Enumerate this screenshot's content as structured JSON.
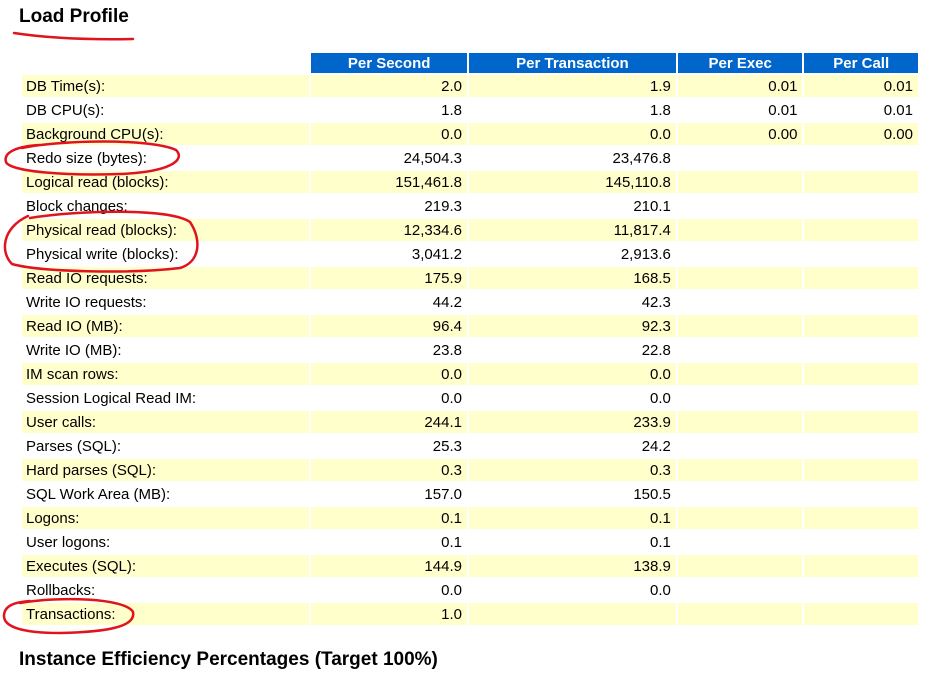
{
  "titles": {
    "load_profile": "Load Profile",
    "efficiency": "Instance Efficiency Percentages (Target 100%)"
  },
  "columns": [
    "",
    "Per Second",
    "Per Transaction",
    "Per Exec",
    "Per Call"
  ],
  "rows": [
    [
      "DB Time(s):",
      "2.0",
      "1.9",
      "0.01",
      "0.01"
    ],
    [
      "DB CPU(s):",
      "1.8",
      "1.8",
      "0.01",
      "0.01"
    ],
    [
      "Background CPU(s):",
      "0.0",
      "0.0",
      "0.00",
      "0.00"
    ],
    [
      "Redo size (bytes):",
      "24,504.3",
      "23,476.8",
      "",
      ""
    ],
    [
      "Logical read (blocks):",
      "151,461.8",
      "145,110.8",
      "",
      ""
    ],
    [
      "Block changes:",
      "219.3",
      "210.1",
      "",
      ""
    ],
    [
      "Physical read (blocks):",
      "12,334.6",
      "11,817.4",
      "",
      ""
    ],
    [
      "Physical write (blocks):",
      "3,041.2",
      "2,913.6",
      "",
      ""
    ],
    [
      "Read IO requests:",
      "175.9",
      "168.5",
      "",
      ""
    ],
    [
      "Write IO requests:",
      "44.2",
      "42.3",
      "",
      ""
    ],
    [
      "Read IO (MB):",
      "96.4",
      "92.3",
      "",
      ""
    ],
    [
      "Write IO (MB):",
      "23.8",
      "22.8",
      "",
      ""
    ],
    [
      "IM scan rows:",
      "0.0",
      "0.0",
      "",
      ""
    ],
    [
      "Session Logical Read IM:",
      "0.0",
      "0.0",
      "",
      ""
    ],
    [
      "User calls:",
      "244.1",
      "233.9",
      "",
      ""
    ],
    [
      "Parses (SQL):",
      "25.3",
      "24.2",
      "",
      ""
    ],
    [
      "Hard parses (SQL):",
      "0.3",
      "0.3",
      "",
      ""
    ],
    [
      "SQL Work Area (MB):",
      "157.0",
      "150.5",
      "",
      ""
    ],
    [
      "Logons:",
      "0.1",
      "0.1",
      "",
      ""
    ],
    [
      "User logons:",
      "0.1",
      "0.1",
      "",
      ""
    ],
    [
      "Executes (SQL):",
      "144.9",
      "138.9",
      "",
      ""
    ],
    [
      "Rollbacks:",
      "0.0",
      "0.0",
      "",
      ""
    ],
    [
      "Transactions:",
      "1.0",
      "",
      "",
      ""
    ]
  ],
  "colors": {
    "header_bg": "#0066cc",
    "header_text": "#ffffff",
    "row_highlight": "#ffffcc",
    "annotation": "#e0141c"
  }
}
